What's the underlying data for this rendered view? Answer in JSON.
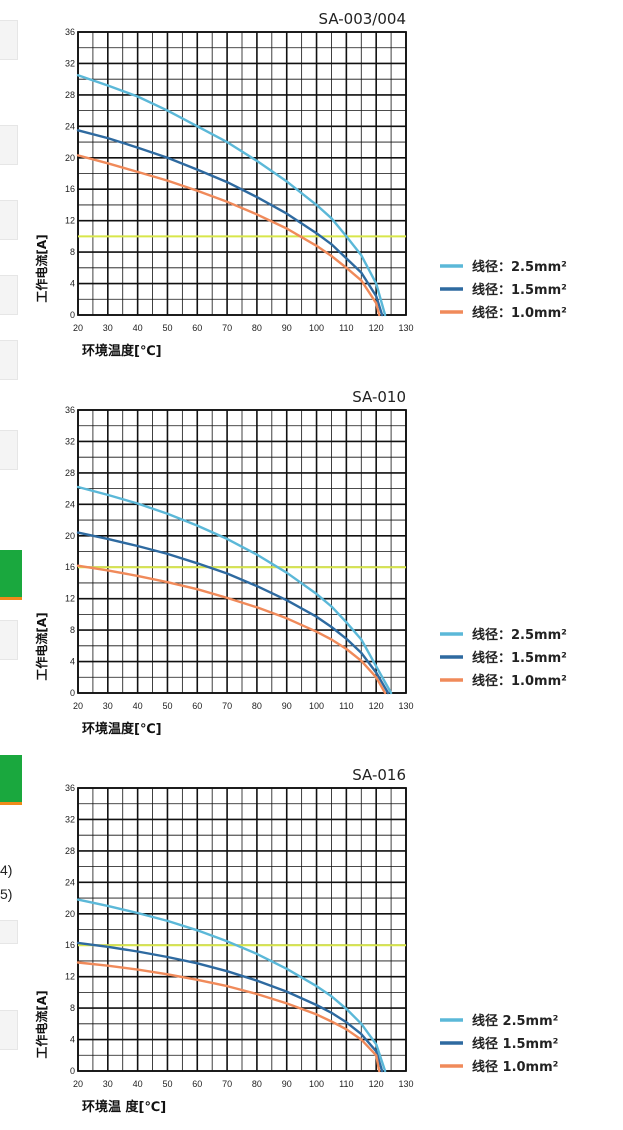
{
  "page_fragments": {
    "left_text_1": "4)",
    "left_text_2": "5)"
  },
  "colors": {
    "grid": "#111111",
    "series_2_5": "#5bb8d8",
    "series_1_5": "#2e6aa0",
    "series_1_0": "#f08a5a",
    "threshold": "#d8e64a",
    "accent_green": "#1aa83e",
    "accent_orange": "#f08a1a"
  },
  "chart_data": [
    {
      "type": "line",
      "title": "SA-003/004",
      "xlabel": "环境温度[℃]",
      "ylabel": "工作电流[A]",
      "xlim": [
        20,
        130
      ],
      "ylim": [
        0,
        36
      ],
      "x_ticks": [
        20,
        30,
        40,
        50,
        60,
        70,
        80,
        90,
        100,
        110,
        120,
        130
      ],
      "y_ticks": [
        0,
        4,
        8,
        12,
        16,
        20,
        24,
        28,
        32,
        36
      ],
      "x_tick_labels": [
        "20",
        "30",
        "40",
        "50",
        "60",
        "70",
        "80",
        "90",
        "100",
        "110",
        "120",
        "130"
      ],
      "y_tick_labels": [
        "0",
        "4",
        "8",
        "12",
        "16",
        "20",
        "24",
        "28",
        "32",
        "36"
      ],
      "grid": true,
      "legend_position": "right",
      "threshold": 10,
      "series": [
        {
          "name": "线径：2.5mm²",
          "color": "#5bb8d8",
          "x": [
            20,
            30,
            40,
            50,
            60,
            70,
            80,
            90,
            100,
            105,
            110,
            115,
            120,
            123
          ],
          "y": [
            30.5,
            29.2,
            27.8,
            26,
            24,
            22,
            19.6,
            17,
            14,
            12.3,
            10,
            7.6,
            4,
            0
          ]
        },
        {
          "name": "线径：1.5mm²",
          "color": "#2e6aa0",
          "x": [
            20,
            30,
            40,
            50,
            60,
            70,
            80,
            90,
            100,
            105,
            110,
            115,
            120,
            122
          ],
          "y": [
            23.5,
            22.5,
            21.3,
            20,
            18.5,
            16.9,
            15,
            12.9,
            10.4,
            9,
            7.2,
            5.4,
            2.4,
            0
          ]
        },
        {
          "name": "线径：1.0mm²",
          "color": "#f08a5a",
          "x": [
            20,
            30,
            40,
            50,
            60,
            70,
            80,
            90,
            100,
            105,
            110,
            115,
            120,
            121
          ],
          "y": [
            20.3,
            19.3,
            18.2,
            17.1,
            15.8,
            14.4,
            12.8,
            11,
            8.8,
            7.5,
            6,
            4.4,
            1.5,
            0
          ]
        }
      ]
    },
    {
      "type": "line",
      "title": "SA-010",
      "xlabel": "环境温度[℃]",
      "ylabel": "工作电流[A]",
      "xlim": [
        20,
        130
      ],
      "ylim": [
        0,
        36
      ],
      "x_ticks": [
        20,
        30,
        40,
        50,
        60,
        70,
        80,
        90,
        100,
        110,
        120,
        130
      ],
      "y_ticks": [
        0,
        4,
        8,
        12,
        16,
        20,
        24,
        28,
        32,
        36
      ],
      "x_tick_labels": [
        "20",
        "30",
        "40",
        "50",
        "60",
        "70",
        "80",
        "90",
        "100",
        "110",
        "120",
        "130"
      ],
      "y_tick_labels": [
        "0",
        "4",
        "8",
        "12",
        "16",
        "20",
        "24",
        "28",
        "32",
        "36"
      ],
      "grid": true,
      "legend_position": "right",
      "threshold": 16,
      "series": [
        {
          "name": "线径：2.5mm²",
          "color": "#5bb8d8",
          "x": [
            20,
            30,
            40,
            50,
            60,
            70,
            80,
            90,
            100,
            105,
            110,
            115,
            120,
            125
          ],
          "y": [
            26.2,
            25.2,
            24.1,
            22.8,
            21.3,
            19.6,
            17.6,
            15.3,
            12.6,
            11,
            9,
            6.8,
            3.4,
            0
          ]
        },
        {
          "name": "线径：1.5mm²",
          "color": "#2e6aa0",
          "x": [
            20,
            30,
            40,
            50,
            60,
            70,
            80,
            90,
            100,
            105,
            110,
            115,
            120,
            124
          ],
          "y": [
            20.4,
            19.6,
            18.7,
            17.7,
            16.5,
            15.2,
            13.6,
            11.8,
            9.7,
            8.4,
            6.9,
            5.1,
            2.6,
            0
          ]
        },
        {
          "name": "线径：1.0mm²",
          "color": "#f08a5a",
          "x": [
            20,
            30,
            40,
            50,
            60,
            70,
            80,
            90,
            100,
            105,
            110,
            115,
            120,
            123
          ],
          "y": [
            16.2,
            15.6,
            14.9,
            14.1,
            13.2,
            12.1,
            10.9,
            9.5,
            7.8,
            6.8,
            5.6,
            4.1,
            2,
            0
          ]
        }
      ]
    },
    {
      "type": "line",
      "title": "SA-016",
      "xlabel": "环境温 度[℃]",
      "ylabel": "工作电流[A]",
      "xlim": [
        20,
        130
      ],
      "ylim": [
        0,
        36
      ],
      "x_ticks": [
        20,
        30,
        40,
        50,
        60,
        70,
        80,
        90,
        100,
        110,
        120,
        130
      ],
      "y_ticks": [
        0,
        4,
        8,
        12,
        16,
        20,
        24,
        28,
        32,
        36
      ],
      "x_tick_labels": [
        "20",
        "30",
        "40",
        "50",
        "60",
        "70",
        "80",
        "90",
        "100",
        "110",
        "120",
        "130"
      ],
      "y_tick_labels": [
        "0",
        "4",
        "8",
        "12",
        "16",
        "20",
        "24",
        "28",
        "32",
        "36"
      ],
      "grid": true,
      "legend_position": "right",
      "threshold": 16,
      "series": [
        {
          "name": "线径 2.5mm²",
          "color": "#5bb8d8",
          "x": [
            20,
            30,
            40,
            50,
            60,
            70,
            80,
            90,
            100,
            105,
            110,
            115,
            120,
            123
          ],
          "y": [
            21.8,
            21,
            20.1,
            19.1,
            17.9,
            16.5,
            14.9,
            13,
            10.8,
            9.5,
            7.9,
            6,
            3.4,
            0
          ]
        },
        {
          "name": "线径 1.5mm²",
          "color": "#2e6aa0",
          "x": [
            20,
            30,
            40,
            50,
            60,
            70,
            80,
            90,
            100,
            105,
            110,
            115,
            120,
            122
          ],
          "y": [
            16.3,
            15.8,
            15.2,
            14.5,
            13.7,
            12.7,
            11.5,
            10.1,
            8.4,
            7.4,
            6.2,
            4.7,
            2.5,
            0
          ]
        },
        {
          "name": "线径 1.0mm²",
          "color": "#f08a5a",
          "x": [
            20,
            30,
            40,
            50,
            60,
            70,
            80,
            90,
            100,
            105,
            110,
            115,
            120,
            121
          ],
          "y": [
            13.8,
            13.4,
            12.9,
            12.3,
            11.6,
            10.8,
            9.8,
            8.6,
            7.2,
            6.3,
            5.3,
            4,
            2,
            0
          ]
        }
      ]
    }
  ]
}
